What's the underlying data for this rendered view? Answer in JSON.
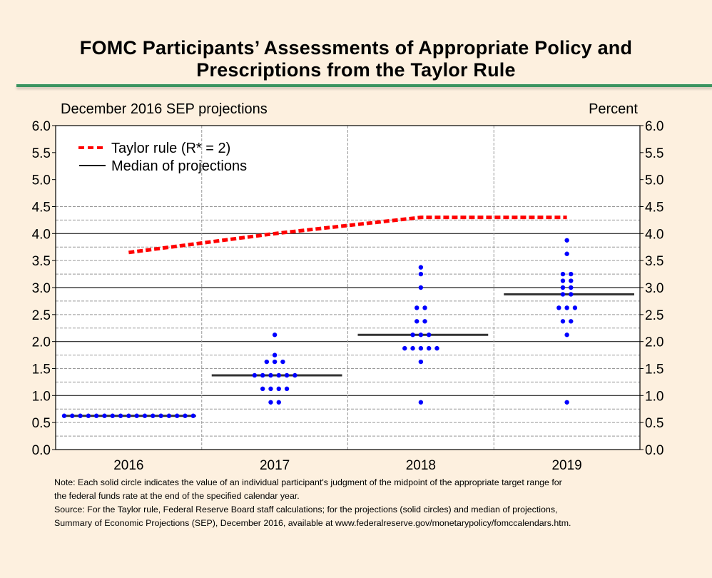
{
  "title_line1": "FOMC Participants’ Assessments of Appropriate Policy and",
  "title_line2": "Prescriptions from the Taylor Rule",
  "notes": [
    "Note: Each solid circle indicates the value of an individual participant's judgment of the midpoint of the appropriate target range for",
    "the federal funds rate at the end of the specified calendar year.",
    "Source:  For the Taylor rule, Federal Reserve Board staff calculations; for the projections (solid circles) and median of projections,",
    "Summary of Economic Projections (SEP), December 2016, available at www.federalreserve.gov/monetarypolicy/fomccalendars.htm."
  ],
  "colors": {
    "background": "#fdf0df",
    "title_rule": "#3a9460",
    "taylor": "#ff0000",
    "median": "#333333",
    "dots": "#0000ff"
  },
  "chart_data": {
    "type": "scatter",
    "title": "December 2016 SEP projections",
    "unit_label": "Percent",
    "xlabel": "",
    "ylabel": "Percent",
    "categories": [
      "2016",
      "2017",
      "2018",
      "2019"
    ],
    "ylim": [
      0,
      6
    ],
    "yticks": [
      "0.0",
      "0.5",
      "1.0",
      "1.5",
      "2.0",
      "2.5",
      "3.0",
      "3.5",
      "4.0",
      "4.5",
      "5.0",
      "5.5",
      "6.0"
    ],
    "grid": "horizontal every 0.25 up to 4.5 (solid at whole numbers), vertical dashed between years",
    "legend_position": "top-left",
    "legend": [
      {
        "label": "Taylor rule (R* = 2)",
        "style": "red-dashed"
      },
      {
        "label": "Median of projections",
        "style": "black-solid"
      }
    ],
    "series": [
      {
        "name": "Taylor rule (R* = 2)",
        "type": "line",
        "x": [
          "2016",
          "2017",
          "2018",
          "2019"
        ],
        "values": [
          3.65,
          4.0,
          4.3,
          4.3
        ]
      },
      {
        "name": "Median of projections",
        "type": "segment",
        "x": [
          "2016",
          "2017",
          "2018",
          "2019"
        ],
        "values": [
          0.625,
          1.375,
          2.125,
          2.875
        ]
      },
      {
        "name": "Participant projections",
        "type": "dot",
        "points": {
          "2016": [
            {
              "value": 0.625,
              "count": 17
            }
          ],
          "2017": [
            {
              "value": 2.125,
              "count": 1
            },
            {
              "value": 1.75,
              "count": 1
            },
            {
              "value": 1.625,
              "count": 3
            },
            {
              "value": 1.375,
              "count": 6
            },
            {
              "value": 1.125,
              "count": 4
            },
            {
              "value": 0.875,
              "count": 2
            }
          ],
          "2018": [
            {
              "value": 3.375,
              "count": 1
            },
            {
              "value": 3.25,
              "count": 1
            },
            {
              "value": 3.0,
              "count": 1
            },
            {
              "value": 2.625,
              "count": 2
            },
            {
              "value": 2.375,
              "count": 2
            },
            {
              "value": 2.125,
              "count": 3
            },
            {
              "value": 1.875,
              "count": 5
            },
            {
              "value": 1.625,
              "count": 1
            },
            {
              "value": 0.875,
              "count": 1
            }
          ],
          "2019": [
            {
              "value": 3.875,
              "count": 1
            },
            {
              "value": 3.625,
              "count": 1
            },
            {
              "value": 3.25,
              "count": 2
            },
            {
              "value": 3.125,
              "count": 2
            },
            {
              "value": 3.0,
              "count": 2
            },
            {
              "value": 2.875,
              "count": 2
            },
            {
              "value": 2.625,
              "count": 3
            },
            {
              "value": 2.375,
              "count": 2
            },
            {
              "value": 2.125,
              "count": 1
            },
            {
              "value": 0.875,
              "count": 1
            }
          ]
        }
      }
    ]
  }
}
